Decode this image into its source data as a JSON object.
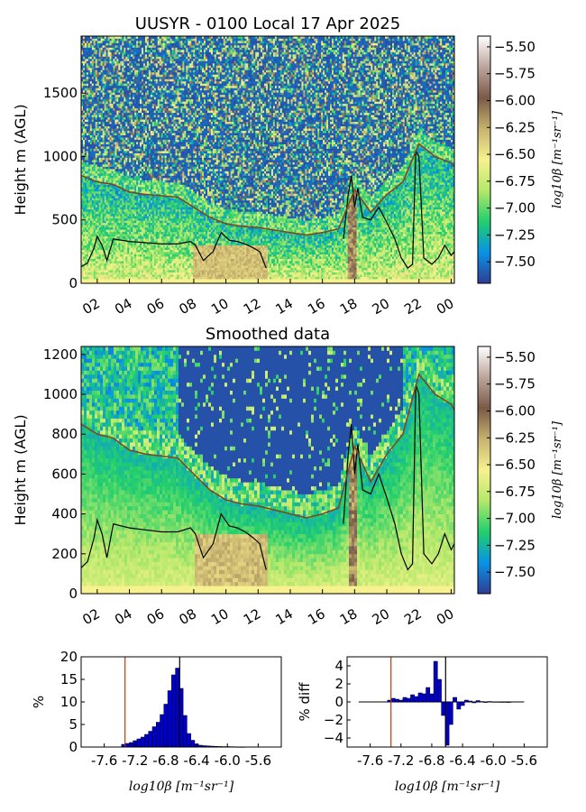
{
  "chart_data": [
    {
      "type": "heatmap",
      "title": "UUSYR - 0100 Local 17 Apr 2025",
      "ylabel": "Height m (AGL)",
      "xlabel": "",
      "x_ticks": [
        "02",
        "04",
        "06",
        "08",
        "10",
        "12",
        "14",
        "16",
        "18",
        "20",
        "22",
        "00"
      ],
      "x_range_hours": [
        1,
        24.2
      ],
      "y_ticks": [
        0,
        500,
        1000,
        1500
      ],
      "ylim": [
        0,
        1950
      ],
      "colorbar": {
        "label": "log10β [m⁻¹sr⁻¹]",
        "ticks": [
          "-5.50",
          "-5.75",
          "-6.00",
          "-6.25",
          "-6.50",
          "-6.75",
          "-7.00",
          "-7.25",
          "-7.50"
        ],
        "range": [
          -7.7,
          -5.4
        ],
        "colormap": [
          "#303c94",
          "#0893e6",
          "#22cf6c",
          "#b4e86a",
          "#f7f28f",
          "#c7b26f",
          "#7a5a48",
          "#bda59c",
          "#ffffff"
        ]
      },
      "series": [
        {
          "style": "black-line",
          "x": [
            1,
            1.4,
            1.8,
            2.0,
            2.3,
            2.6,
            3.0,
            3.5,
            4,
            5,
            6,
            7,
            7.8,
            8.1,
            8.6,
            9.2,
            9.7,
            10.2,
            10.7,
            11.2,
            11.7,
            12.1,
            12.5
          ],
          "y": [
            130,
            160,
            280,
            370,
            300,
            180,
            350,
            340,
            330,
            320,
            310,
            310,
            330,
            300,
            180,
            250,
            400,
            340,
            330,
            310,
            280,
            250,
            120
          ]
        },
        {
          "style": "black-line",
          "x": [
            17.3,
            17.6,
            17.8,
            18.0,
            18.2,
            18.5,
            19.0,
            19.5,
            20.0,
            20.5,
            20.9,
            21.3,
            21.6,
            21.8,
            22.0,
            22.3,
            22.8,
            23.2,
            23.6,
            24.0,
            24.2
          ],
          "y": [
            350,
            700,
            850,
            600,
            750,
            520,
            500,
            600,
            480,
            350,
            200,
            120,
            150,
            1050,
            1000,
            200,
            150,
            200,
            300,
            220,
            250
          ]
        },
        {
          "style": "brown-line",
          "x": [
            1,
            2,
            3,
            4,
            5,
            6,
            7,
            8,
            9,
            10,
            11,
            12,
            13,
            14,
            15,
            16,
            17,
            18,
            19,
            20,
            21,
            22,
            23,
            24,
            24.2
          ],
          "y": [
            850,
            800,
            780,
            720,
            700,
            690,
            680,
            600,
            520,
            470,
            450,
            440,
            420,
            400,
            380,
            400,
            430,
            740,
            560,
            700,
            800,
            1100,
            1000,
            950,
            920
          ]
        }
      ]
    },
    {
      "type": "heatmap",
      "title": "Smoothed data",
      "ylabel": "Height m (AGL)",
      "xlabel": "",
      "x_ticks": [
        "02",
        "04",
        "06",
        "08",
        "10",
        "12",
        "14",
        "16",
        "18",
        "20",
        "22",
        "00"
      ],
      "x_range_hours": [
        1,
        24.2
      ],
      "y_ticks": [
        0,
        200,
        400,
        600,
        800,
        1000,
        1200
      ],
      "ylim": [
        0,
        1240
      ],
      "colorbar": {
        "label": "log10β [m⁻¹sr⁻¹]",
        "ticks": [
          "-5.50",
          "-5.75",
          "-6.00",
          "-6.25",
          "-6.50",
          "-6.75",
          "-7.00",
          "-7.25",
          "-7.50"
        ],
        "range": [
          -7.7,
          -5.4
        ],
        "colormap": [
          "#303c94",
          "#0893e6",
          "#22cf6c",
          "#b4e86a",
          "#f7f28f",
          "#c7b26f",
          "#7a5a48",
          "#bda59c",
          "#ffffff"
        ]
      },
      "series": [
        {
          "style": "black-line",
          "x": [
            1,
            1.4,
            1.8,
            2.0,
            2.3,
            2.6,
            3.0,
            3.5,
            4,
            5,
            6,
            7,
            7.8,
            8.1,
            8.6,
            9.2,
            9.7,
            10.2,
            10.7,
            11.2,
            11.7,
            12.1,
            12.5
          ],
          "y": [
            130,
            160,
            280,
            370,
            300,
            180,
            350,
            340,
            330,
            320,
            310,
            310,
            330,
            300,
            180,
            250,
            400,
            340,
            330,
            310,
            280,
            250,
            120
          ]
        },
        {
          "style": "black-line",
          "x": [
            17.3,
            17.6,
            17.8,
            18.0,
            18.2,
            18.5,
            19.0,
            19.5,
            20.0,
            20.5,
            20.9,
            21.3,
            21.6,
            21.8,
            22.0,
            22.3,
            22.8,
            23.2,
            23.6,
            24.0,
            24.2
          ],
          "y": [
            350,
            700,
            850,
            600,
            750,
            520,
            500,
            600,
            480,
            350,
            200,
            120,
            150,
            1050,
            1000,
            200,
            150,
            200,
            300,
            220,
            250
          ]
        },
        {
          "style": "brown-line",
          "x": [
            1,
            2,
            3,
            4,
            5,
            6,
            7,
            8,
            9,
            10,
            11,
            12,
            13,
            14,
            15,
            16,
            17,
            18,
            19,
            20,
            21,
            22,
            23,
            24,
            24.2
          ],
          "y": [
            850,
            800,
            780,
            720,
            700,
            690,
            680,
            600,
            520,
            470,
            450,
            440,
            420,
            400,
            380,
            400,
            430,
            740,
            560,
            700,
            800,
            1100,
            1000,
            950,
            920
          ]
        }
      ]
    },
    {
      "type": "bar",
      "title": "",
      "ylabel": "%",
      "xlabel": "log10β [m⁻¹sr⁻¹]",
      "x_ticks": [
        "-7.6",
        "-7.2",
        "-6.8",
        "-6.4",
        "-6.0",
        "-5.6"
      ],
      "xlim": [
        -7.9,
        -5.3
      ],
      "ylim": [
        0,
        20
      ],
      "y_ticks": [
        0,
        5,
        10,
        15,
        20
      ],
      "x": [
        -7.35,
        -7.3,
        -7.25,
        -7.2,
        -7.15,
        -7.1,
        -7.05,
        -7.0,
        -6.95,
        -6.9,
        -6.85,
        -6.8,
        -6.75,
        -6.7,
        -6.65,
        -6.6,
        -6.55,
        -6.5,
        -6.45,
        -6.4,
        -6.35,
        -6.3,
        -6.25,
        -6.2,
        -6.15,
        -6.1,
        -6.05,
        -6.0,
        -5.95,
        -5.9,
        -5.85,
        -5.8
      ],
      "values": [
        0.6,
        0.8,
        1.0,
        1.4,
        1.8,
        2.2,
        2.8,
        3.5,
        4.5,
        5.5,
        7.2,
        9.5,
        12.5,
        16.0,
        17.5,
        13.0,
        7.0,
        3.0,
        1.5,
        0.7,
        0.4,
        0.3,
        0.25,
        0.2,
        0.15,
        0.12,
        0.1,
        0.1,
        0.08,
        0.06,
        0.05,
        0.04
      ],
      "vlines": [
        {
          "x": -7.33,
          "color": "#b24010"
        },
        {
          "x": -6.62,
          "color": "#000000"
        }
      ]
    },
    {
      "type": "bar",
      "title": "",
      "ylabel": "% diff",
      "xlabel": "log10β [m⁻¹sr⁻¹]",
      "x_ticks": [
        "-7.6",
        "-7.2",
        "-6.8",
        "-6.4",
        "-6.0",
        "-5.6"
      ],
      "xlim": [
        -7.9,
        -5.3
      ],
      "ylim": [
        -5,
        5
      ],
      "y_ticks": [
        -4,
        -2,
        0,
        2,
        4
      ],
      "x": [
        -7.35,
        -7.3,
        -7.25,
        -7.2,
        -7.15,
        -7.1,
        -7.05,
        -7.0,
        -6.95,
        -6.9,
        -6.85,
        -6.8,
        -6.75,
        -6.7,
        -6.65,
        -6.6,
        -6.55,
        -6.5,
        -6.45,
        -6.4,
        -6.35,
        -6.3,
        -6.25,
        -6.2,
        -6.15,
        -6.1,
        -6.05,
        -6.0,
        -5.95,
        -5.9,
        -5.85,
        -5.8
      ],
      "values": [
        0.2,
        0.4,
        0.3,
        0.2,
        0.5,
        0.4,
        0.8,
        0.6,
        1.0,
        0.9,
        1.6,
        0.9,
        4.5,
        2.5,
        -1.5,
        -4.8,
        -2.5,
        0.5,
        -0.8,
        -0.4,
        0.2,
        0.1,
        -0.1,
        0.15,
        0.05,
        -0.05,
        0.05,
        0.02,
        0.02,
        0.01,
        0.01,
        0.0
      ],
      "vlines": [
        {
          "x": -7.33,
          "color": "#b24010"
        },
        {
          "x": -6.62,
          "color": "#000000"
        }
      ]
    }
  ]
}
